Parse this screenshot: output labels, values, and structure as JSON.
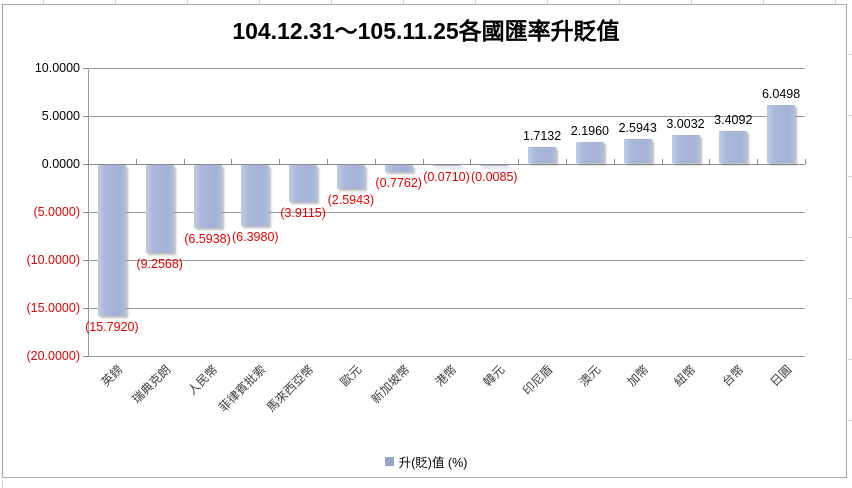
{
  "title": "104.12.31～105.11.25各國匯率升貶值",
  "legend": {
    "label": "升(貶)值 (%)",
    "marker_color": "#95a5c9"
  },
  "y_axis": {
    "ticks": [
      {
        "label": "10.0000",
        "value": 10
      },
      {
        "label": "5.0000",
        "value": 5
      },
      {
        "label": "0.0000",
        "value": 0
      },
      {
        "label": "(5.0000)",
        "value": -5
      },
      {
        "label": "(10.0000)",
        "value": -10
      },
      {
        "label": "(15.0000)",
        "value": -15
      },
      {
        "label": "(20.0000)",
        "value": -20
      }
    ]
  },
  "chart_data": {
    "type": "bar",
    "title": "104.12.31～105.11.25各國匯率升貶值",
    "categories": [
      "英鎊",
      "瑞典克朗",
      "人民幣",
      "菲律賓批索",
      "馬來西亞幣",
      "歐元",
      "新加坡幣",
      "港幣",
      "韓元",
      "印尼盾",
      "澳元",
      "加幣",
      "紐幣",
      "台幣",
      "日圓"
    ],
    "values": [
      -15.792,
      -9.2568,
      -6.5938,
      -6.398,
      -3.9115,
      -2.5943,
      -0.7762,
      -0.071,
      -0.0085,
      1.7132,
      2.196,
      2.5943,
      3.0032,
      3.4092,
      6.0498
    ],
    "value_labels": [
      "(15.7920)",
      "(9.2568)",
      "(6.5938)",
      "(6.3980)",
      "(3.9115)",
      "(2.5943)",
      "(0.7762)",
      "(0.0710)",
      "(0.0085)",
      "1.7132",
      "2.1960",
      "2.5943",
      "3.0032",
      "3.4092",
      "6.0498"
    ],
    "xlabel": "",
    "ylabel": "",
    "ylim": [
      -20,
      10
    ],
    "y_step": 5,
    "grid": true,
    "legend": [
      "升(貶)值 (%)"
    ],
    "legend_position": "bottom",
    "negative_label_color": "#e80000",
    "bar_color": "#a9b8d9"
  }
}
